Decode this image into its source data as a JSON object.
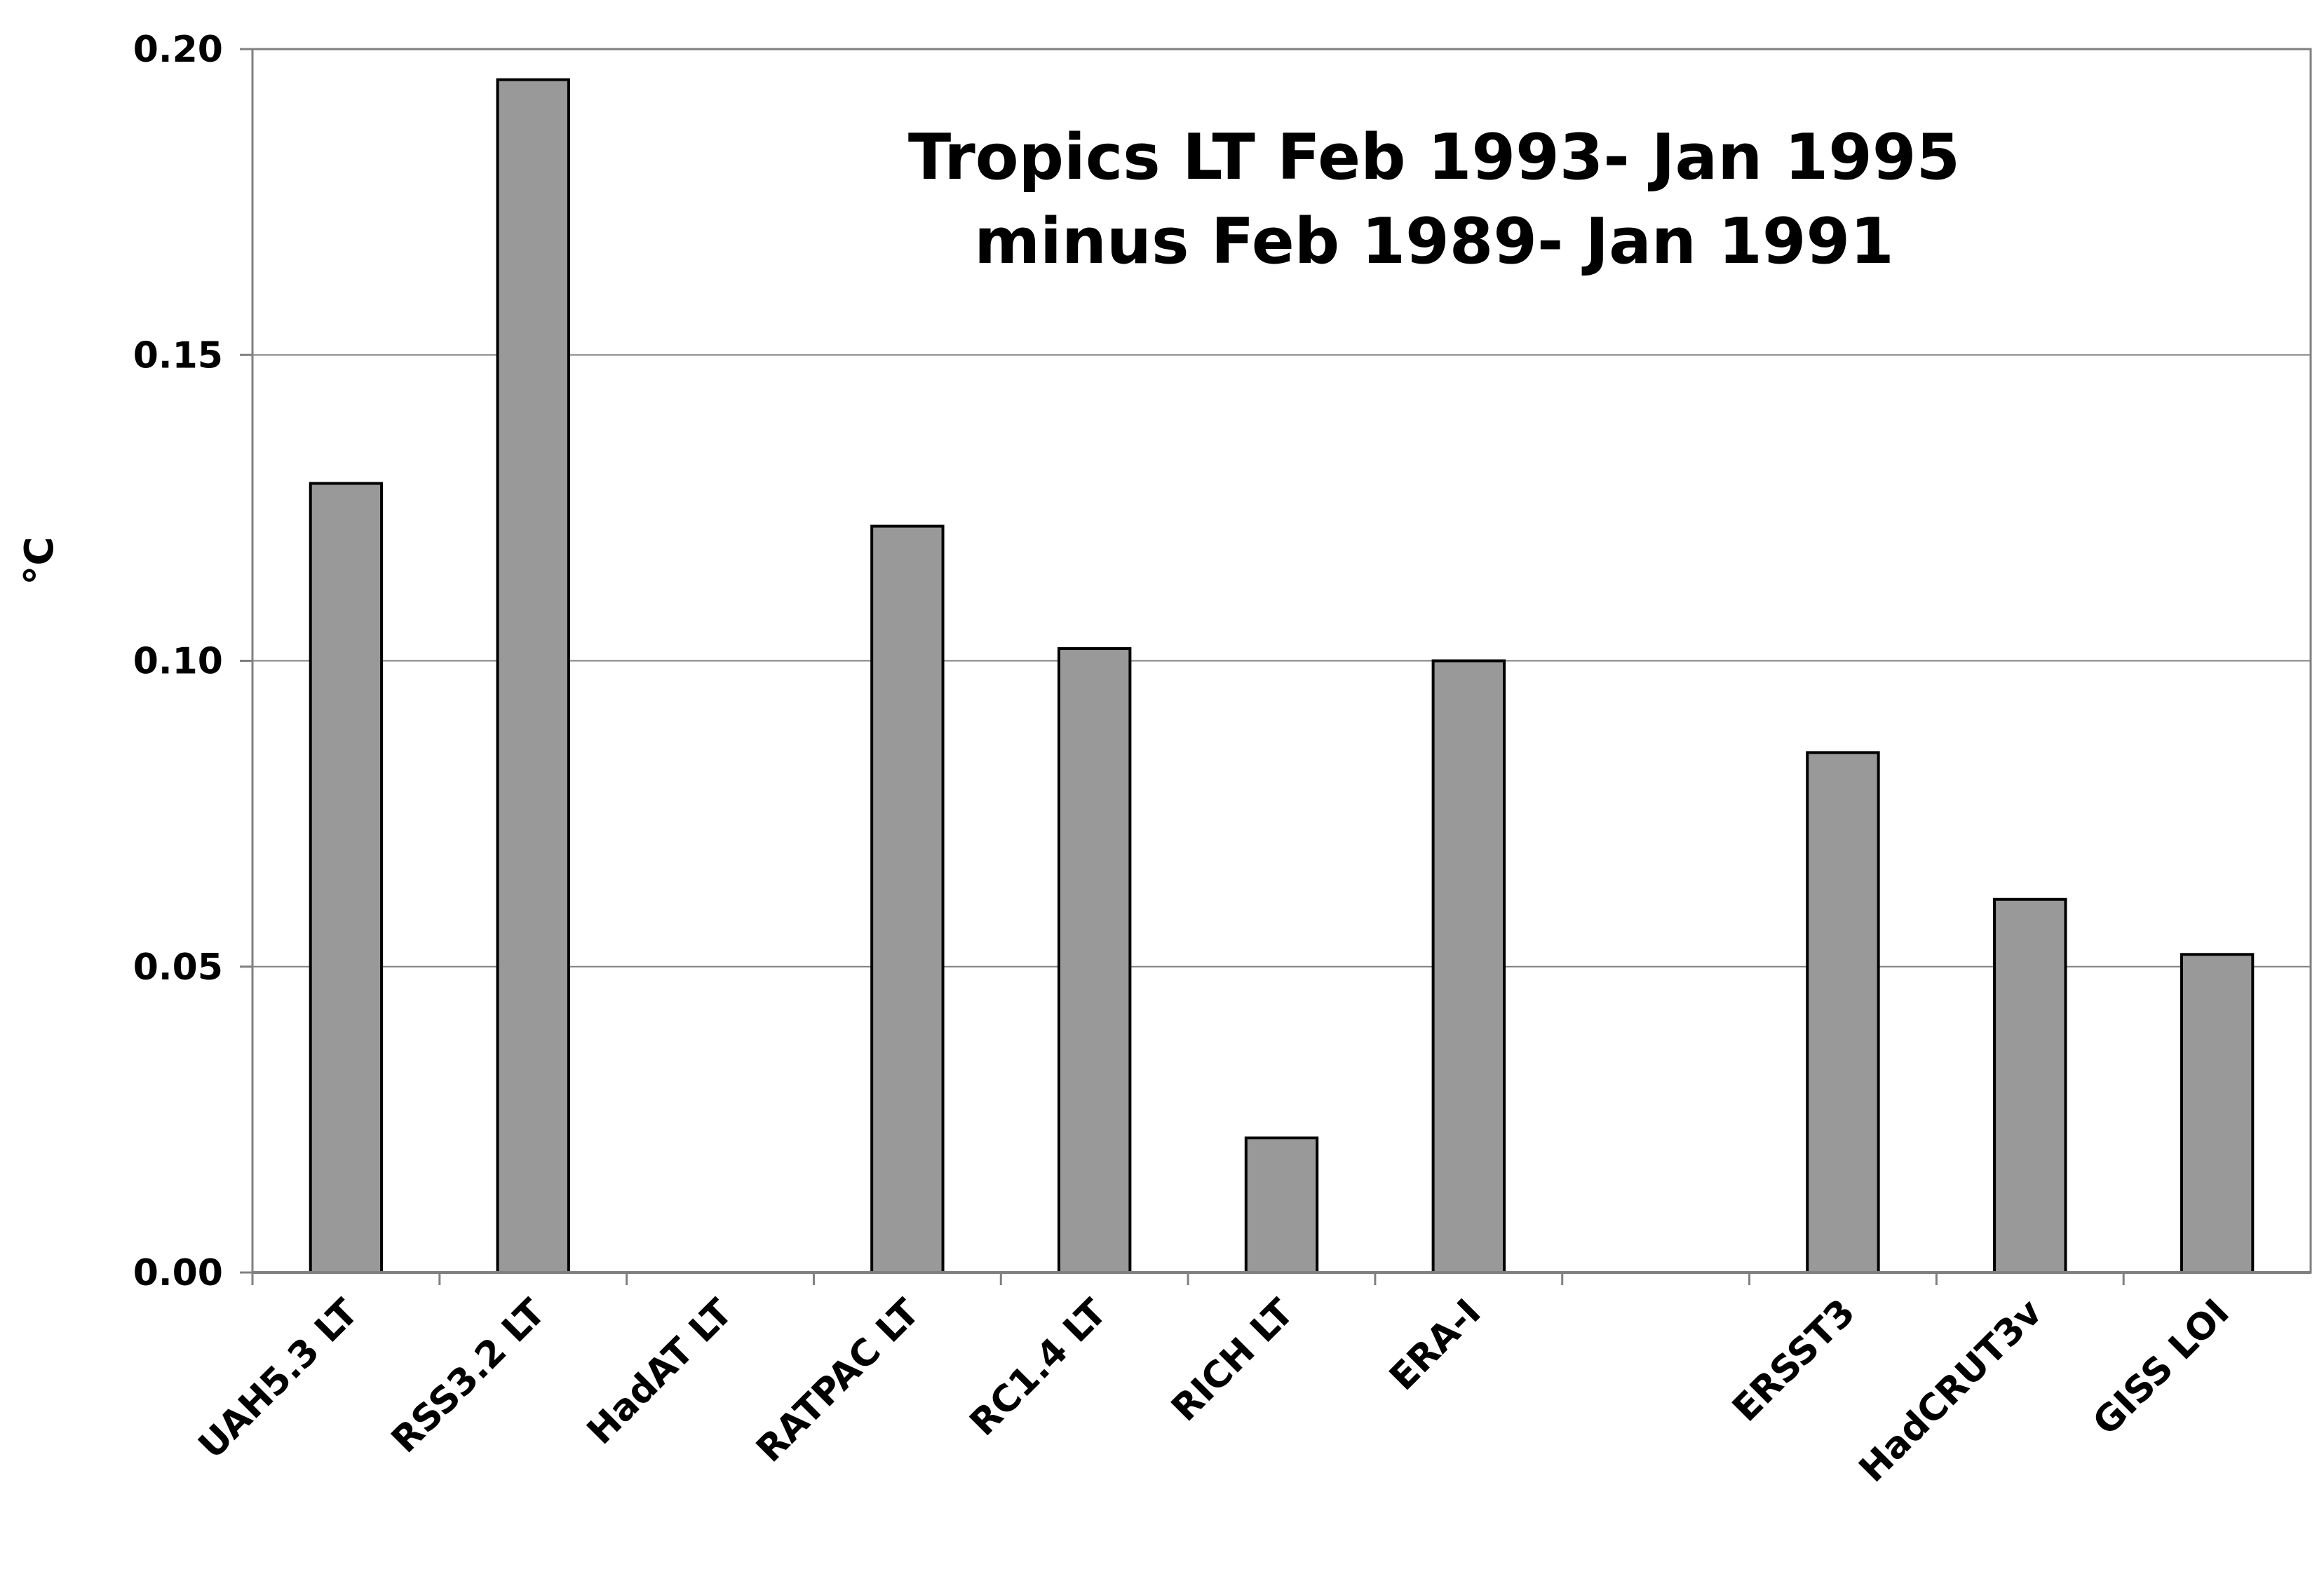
{
  "chart_data": {
    "type": "bar",
    "title_lines": [
      "Tropics LT Feb 1993- Jan 1995",
      "minus Feb 1989- Jan 1991"
    ],
    "xlabel": "",
    "ylabel": "°C",
    "ylim": [
      0,
      0.2
    ],
    "yticks": [
      "0.00",
      "0.05",
      "0.10",
      "0.15",
      "0.20"
    ],
    "ytick_values": [
      0,
      0.05,
      0.1,
      0.15,
      0.2
    ],
    "grid": true,
    "categories": [
      "UAH5.3 LT",
      "RSS3.2 LT",
      "HadAT LT",
      "RATPAC LT",
      "RC1.4 LT",
      "RICH LT",
      "ERA-I",
      "",
      "ERSST3",
      "HadCRUT3v",
      "GISS LOI"
    ],
    "values": [
      0.129,
      0.195,
      null,
      0.122,
      0.102,
      0.022,
      0.1,
      null,
      0.085,
      0.061,
      0.052
    ],
    "bar_color": "#999999",
    "bar_edge_color": "#000000",
    "gridline_color": "#808080"
  }
}
